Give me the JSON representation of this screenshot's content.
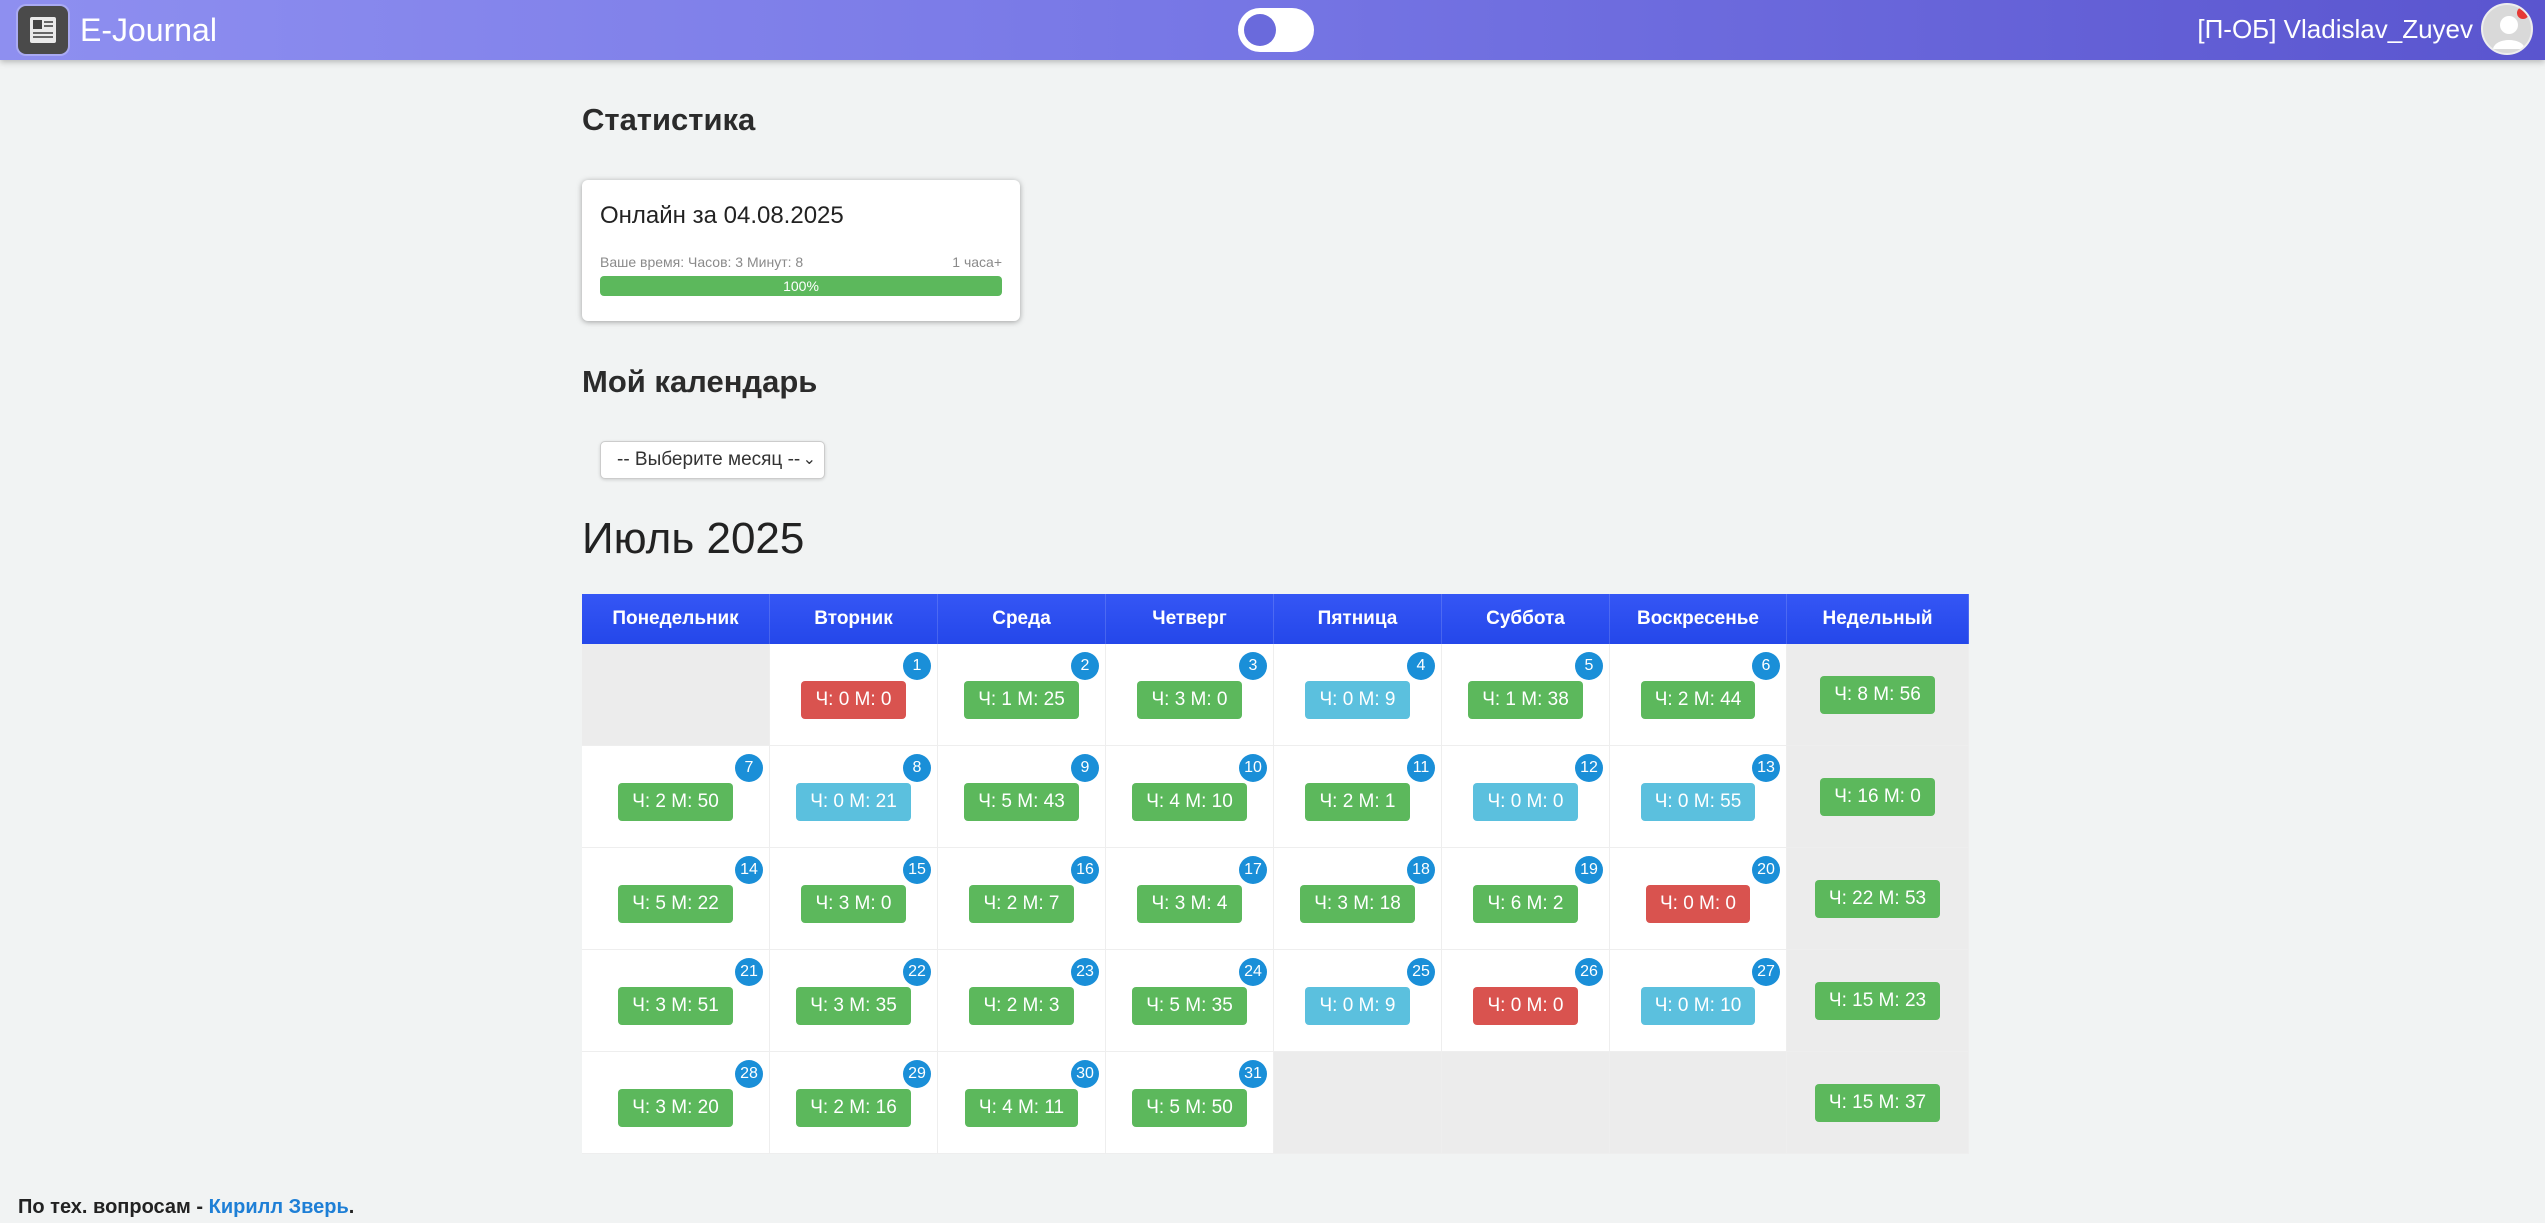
{
  "header": {
    "brand": "E-Journal",
    "user": "[П-ОБ] Vladislav_Zuyev"
  },
  "stats": {
    "heading": "Статистика",
    "card_title": "Онлайн за 04.08.2025",
    "time_label": "Ваше время: Часов: 3 Минут: 8",
    "goal_label": "1 часа+",
    "progress_text": "100%",
    "progress_value": 100
  },
  "calendar_section": {
    "heading": "Мой календарь",
    "select_placeholder": "-- Выберите месяц --",
    "month_title": "Июль 2025"
  },
  "calendar": {
    "columns": [
      "Понедельник",
      "Вторник",
      "Среда",
      "Четверг",
      "Пятница",
      "Суббота",
      "Воскресенье",
      "Недельный"
    ],
    "weeks": [
      {
        "days": [
          null,
          {
            "day": "1",
            "value": "Ч: 0 М: 0",
            "status": "red"
          },
          {
            "day": "2",
            "value": "Ч: 1 М: 25",
            "status": "green"
          },
          {
            "day": "3",
            "value": "Ч: 3 М: 0",
            "status": "green"
          },
          {
            "day": "4",
            "value": "Ч: 0 М: 9",
            "status": "blue"
          },
          {
            "day": "5",
            "value": "Ч: 1 М: 38",
            "status": "green"
          },
          {
            "day": "6",
            "value": "Ч: 2 М: 44",
            "status": "green"
          }
        ],
        "total": "Ч: 8 М: 56"
      },
      {
        "days": [
          {
            "day": "7",
            "value": "Ч: 2 М: 50",
            "status": "green"
          },
          {
            "day": "8",
            "value": "Ч: 0 М: 21",
            "status": "blue"
          },
          {
            "day": "9",
            "value": "Ч: 5 М: 43",
            "status": "green"
          },
          {
            "day": "10",
            "value": "Ч: 4 М: 10",
            "status": "green"
          },
          {
            "day": "11",
            "value": "Ч: 2 М: 1",
            "status": "green"
          },
          {
            "day": "12",
            "value": "Ч: 0 М: 0",
            "status": "blue"
          },
          {
            "day": "13",
            "value": "Ч: 0 М: 55",
            "status": "blue"
          }
        ],
        "total": "Ч: 16 М: 0"
      },
      {
        "days": [
          {
            "day": "14",
            "value": "Ч: 5 М: 22",
            "status": "green"
          },
          {
            "day": "15",
            "value": "Ч: 3 М: 0",
            "status": "green"
          },
          {
            "day": "16",
            "value": "Ч: 2 М: 7",
            "status": "green"
          },
          {
            "day": "17",
            "value": "Ч: 3 М: 4",
            "status": "green"
          },
          {
            "day": "18",
            "value": "Ч: 3 М: 18",
            "status": "green"
          },
          {
            "day": "19",
            "value": "Ч: 6 М: 2",
            "status": "green"
          },
          {
            "day": "20",
            "value": "Ч: 0 М: 0",
            "status": "red"
          }
        ],
        "total": "Ч: 22 М: 53"
      },
      {
        "days": [
          {
            "day": "21",
            "value": "Ч: 3 М: 51",
            "status": "green"
          },
          {
            "day": "22",
            "value": "Ч: 3 М: 35",
            "status": "green"
          },
          {
            "day": "23",
            "value": "Ч: 2 М: 3",
            "status": "green"
          },
          {
            "day": "24",
            "value": "Ч: 5 М: 35",
            "status": "green"
          },
          {
            "day": "25",
            "value": "Ч: 0 М: 9",
            "status": "blue"
          },
          {
            "day": "26",
            "value": "Ч: 0 М: 0",
            "status": "red"
          },
          {
            "day": "27",
            "value": "Ч: 0 М: 10",
            "status": "blue"
          }
        ],
        "total": "Ч: 15 М: 23"
      },
      {
        "days": [
          {
            "day": "28",
            "value": "Ч: 3 М: 20",
            "status": "green"
          },
          {
            "day": "29",
            "value": "Ч: 2 М: 16",
            "status": "green"
          },
          {
            "day": "30",
            "value": "Ч: 4 М: 11",
            "status": "green"
          },
          {
            "day": "31",
            "value": "Ч: 5 М: 50",
            "status": "green"
          },
          null,
          null,
          null
        ],
        "total": "Ч: 15 М: 37"
      }
    ]
  },
  "footer": {
    "prefix": "По тех. вопросам - ",
    "link": "Кирилл Зверь",
    "suffix": "."
  },
  "colors": {
    "accent": "#2d52f0",
    "green": "#5cb85c",
    "red": "#d9534f",
    "blue": "#5bc0de"
  }
}
